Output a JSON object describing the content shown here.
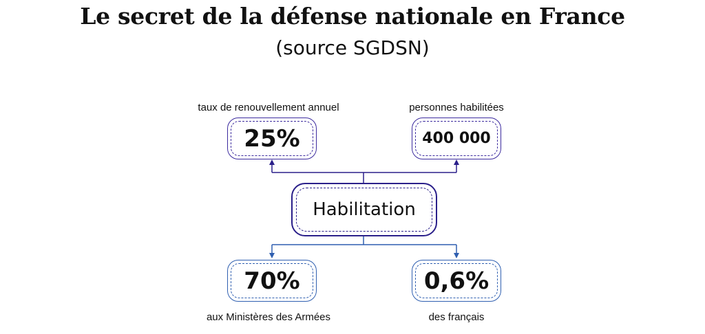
{
  "header": {
    "title": "Le secret de la défense nationale en France",
    "subtitle": "(source SGDSN)"
  },
  "center": {
    "label": "Habilitation"
  },
  "nodes": [
    {
      "caption": "taux de renouvellement annuel",
      "value": "25%",
      "color": "#3b2a9e"
    },
    {
      "caption": "personnes habilitées",
      "value": "400 000",
      "color": "#3b2a9e"
    },
    {
      "caption": "aux Ministères des Armées",
      "value": "70%",
      "color": "#2f5fb0"
    },
    {
      "caption": "des français",
      "value": "0,6%",
      "color": "#2f5fb0"
    }
  ],
  "colors": {
    "top_connector": "#2a1f8a",
    "bottom_connector": "#2f5fb0"
  }
}
